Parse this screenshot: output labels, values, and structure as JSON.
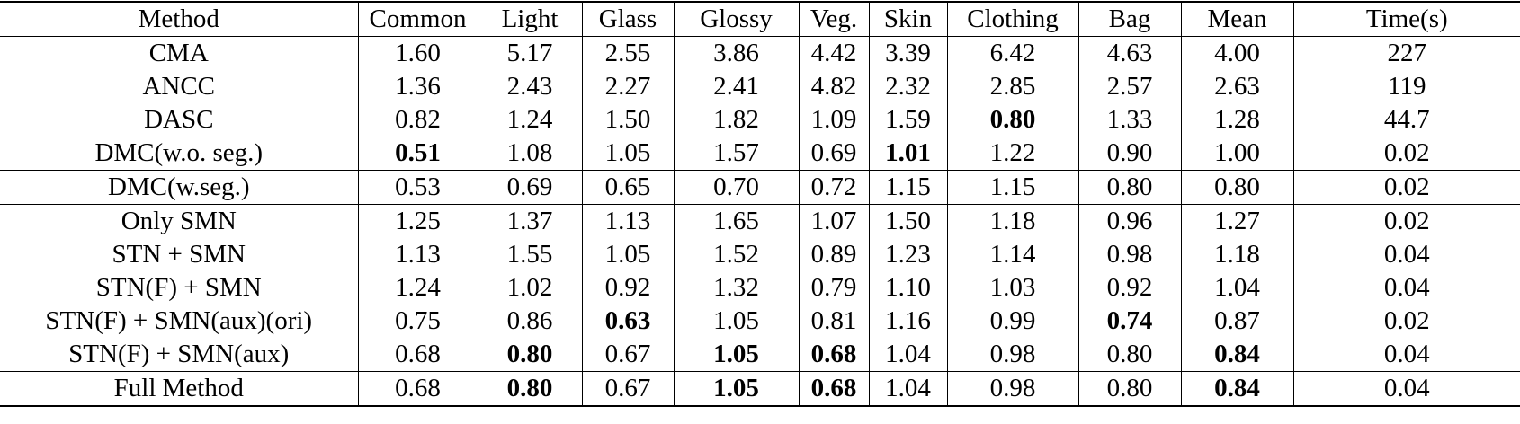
{
  "table": {
    "header": [
      "Method",
      "Common",
      "Light",
      "Glass",
      "Glossy",
      "Veg.",
      "Skin",
      "Clothing",
      "Bag",
      "Mean",
      "Time(s)"
    ],
    "groups": [
      {
        "rows": [
          [
            "CMA",
            "1.60",
            "5.17",
            "2.55",
            "3.86",
            "4.42",
            "3.39",
            "6.42",
            "4.63",
            "4.00",
            "227"
          ],
          [
            "ANCC",
            "1.36",
            "2.43",
            "2.27",
            "2.41",
            "4.82",
            "2.32",
            "2.85",
            "2.57",
            "2.63",
            "119"
          ],
          [
            "DASC",
            "0.82",
            "1.24",
            "1.50",
            "1.82",
            "1.09",
            "1.59",
            "0.80",
            "1.33",
            "1.28",
            "44.7"
          ],
          [
            "DMC(w.o. seg.)",
            "0.51",
            "1.08",
            "1.05",
            "1.57",
            "0.69",
            "1.01",
            "1.22",
            "0.90",
            "1.00",
            "0.02"
          ]
        ],
        "bold": [
          [
            2,
            7
          ],
          [
            3,
            1
          ],
          [
            3,
            6
          ]
        ]
      },
      {
        "rows": [
          [
            "DMC(w.seg.)",
            "0.53",
            "0.69",
            "0.65",
            "0.70",
            "0.72",
            "1.15",
            "1.15",
            "0.80",
            "0.80",
            "0.02"
          ]
        ],
        "bold": []
      },
      {
        "rows": [
          [
            "Only SMN",
            "1.25",
            "1.37",
            "1.13",
            "1.65",
            "1.07",
            "1.50",
            "1.18",
            "0.96",
            "1.27",
            "0.02"
          ],
          [
            "STN + SMN",
            "1.13",
            "1.55",
            "1.05",
            "1.52",
            "0.89",
            "1.23",
            "1.14",
            "0.98",
            "1.18",
            "0.04"
          ],
          [
            "STN(F) + SMN",
            "1.24",
            "1.02",
            "0.92",
            "1.32",
            "0.79",
            "1.10",
            "1.03",
            "0.92",
            "1.04",
            "0.04"
          ],
          [
            "STN(F) + SMN(aux)(ori)",
            "0.75",
            "0.86",
            "0.63",
            "1.05",
            "0.81",
            "1.16",
            "0.99",
            "0.74",
            "0.87",
            "0.02"
          ],
          [
            "STN(F) + SMN(aux)",
            "0.68",
            "0.80",
            "0.67",
            "1.05",
            "0.68",
            "1.04",
            "0.98",
            "0.80",
            "0.84",
            "0.04"
          ]
        ],
        "bold": [
          [
            3,
            3
          ],
          [
            3,
            8
          ],
          [
            4,
            2
          ],
          [
            4,
            4
          ],
          [
            4,
            5
          ],
          [
            4,
            9
          ]
        ]
      },
      {
        "rows": [
          [
            "Full Method",
            "0.68",
            "0.80",
            "0.67",
            "1.05",
            "0.68",
            "1.04",
            "0.98",
            "0.80",
            "0.84",
            "0.04"
          ]
        ],
        "bold": [
          [
            0,
            2
          ],
          [
            0,
            4
          ],
          [
            0,
            5
          ],
          [
            0,
            9
          ]
        ]
      }
    ]
  }
}
